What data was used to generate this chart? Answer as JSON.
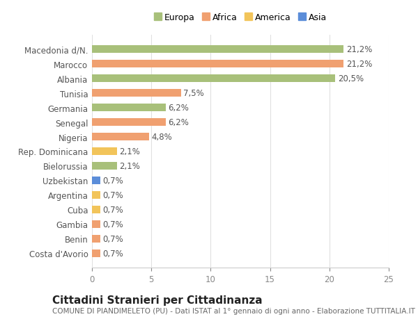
{
  "title": "Cittadini Stranieri per Cittadinanza",
  "subtitle": "COMUNE DI PIANDIMELETO (PU) - Dati ISTAT al 1° gennaio di ogni anno - Elaborazione TUTTITALIA.IT",
  "categories": [
    "Costa d'Avorio",
    "Benin",
    "Gambia",
    "Cuba",
    "Argentina",
    "Uzbekistan",
    "Bielorussia",
    "Rep. Dominicana",
    "Nigeria",
    "Senegal",
    "Germania",
    "Tunisia",
    "Albania",
    "Marocco",
    "Macedonia d/N."
  ],
  "values": [
    0.7,
    0.7,
    0.7,
    0.7,
    0.7,
    0.7,
    2.1,
    2.1,
    4.8,
    6.2,
    6.2,
    7.5,
    20.5,
    21.2,
    21.2
  ],
  "labels": [
    "0,7%",
    "0,7%",
    "0,7%",
    "0,7%",
    "0,7%",
    "0,7%",
    "2,1%",
    "2,1%",
    "4,8%",
    "6,2%",
    "6,2%",
    "7,5%",
    "20,5%",
    "21,2%",
    "21,2%"
  ],
  "colors": [
    "#f0a070",
    "#f0a070",
    "#f0a070",
    "#f2c45a",
    "#f2c45a",
    "#5b8dd9",
    "#a8c07a",
    "#f2c45a",
    "#f0a070",
    "#f0a070",
    "#a8c07a",
    "#f0a070",
    "#a8c07a",
    "#f0a070",
    "#a8c07a"
  ],
  "legend": [
    {
      "label": "Europa",
      "color": "#a8c07a"
    },
    {
      "label": "Africa",
      "color": "#f0a070"
    },
    {
      "label": "America",
      "color": "#f2c45a"
    },
    {
      "label": "Asia",
      "color": "#5b8dd9"
    }
  ],
  "xlim": [
    0,
    25
  ],
  "xticks": [
    0,
    5,
    10,
    15,
    20,
    25
  ],
  "background_color": "#ffffff",
  "bar_height": 0.55,
  "label_fontsize": 8.5,
  "tick_fontsize": 8.5,
  "title_fontsize": 11,
  "subtitle_fontsize": 7.5
}
